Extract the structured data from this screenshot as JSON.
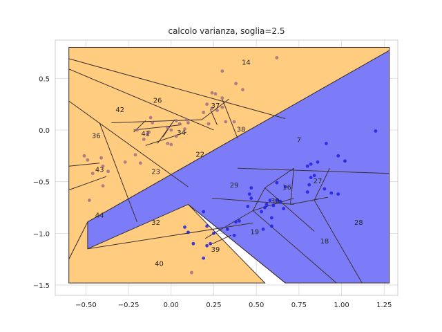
{
  "chart_data": {
    "type": "scatter",
    "title": "calcolo varianza, soglia=2.5",
    "xlabel": "",
    "ylabel": "",
    "xlim": [
      -0.68,
      1.33
    ],
    "ylim": [
      -1.6,
      0.87
    ],
    "x_ticks": [
      -0.5,
      -0.25,
      0.0,
      0.25,
      0.5,
      0.75,
      1.0,
      1.25
    ],
    "x_tick_labels": [
      "−0.50",
      "−0.25",
      "0.00",
      "0.25",
      "0.50",
      "0.75",
      "1.00",
      "1.25"
    ],
    "y_ticks": [
      0.5,
      0.0,
      -0.5,
      -1.0,
      -1.5
    ],
    "y_tick_labels": [
      "0.5",
      "0.0",
      "−0.5",
      "−1.0",
      "−1.5"
    ],
    "grid": true,
    "colors": {
      "orange_region": "#ffcc80",
      "blue_region": "#7c7cf8",
      "orange_point": "#a07080",
      "blue_point": "#2020e0",
      "boundary": "#3a3030",
      "grid": "#d9d9d9"
    },
    "regions": [
      {
        "color": "orange",
        "polygon": [
          [
            -0.6,
            0.8
          ],
          [
            1.28,
            0.8
          ],
          [
            1.28,
            0.77
          ],
          [
            -0.49,
            -0.89
          ],
          [
            -0.6,
            -1.25
          ]
        ]
      },
      {
        "color": "orange",
        "polygon": [
          [
            -0.49,
            -0.89
          ],
          [
            0.1,
            -0.72
          ],
          [
            0.55,
            -1.48
          ],
          [
            -0.6,
            -1.48
          ],
          [
            -0.6,
            -1.25
          ]
        ]
      },
      {
        "color": "blue",
        "polygon": [
          [
            1.28,
            0.77
          ],
          [
            1.28,
            -1.48
          ],
          [
            0.67,
            -1.48
          ],
          [
            0.1,
            -0.72
          ],
          [
            -0.49,
            -1.15
          ],
          [
            -0.49,
            -0.89
          ]
        ]
      }
    ],
    "boundaries": [
      [
        [
          -0.6,
          0.69
        ],
        [
          0.67,
          0.11
        ]
      ],
      [
        [
          -0.6,
          0.59
        ],
        [
          0.25,
          0.0
        ]
      ],
      [
        [
          -0.6,
          0.28
        ],
        [
          0.1,
          -0.55
        ]
      ],
      [
        [
          -0.6,
          -0.35
        ],
        [
          -0.42,
          -0.32
        ]
      ],
      [
        [
          -0.6,
          -0.58
        ],
        [
          -0.38,
          -0.45
        ]
      ],
      [
        [
          -0.42,
          0.07
        ],
        [
          -0.2,
          -0.89
        ]
      ],
      [
        [
          -0.35,
          0.07
        ],
        [
          0.18,
          0.1
        ]
      ],
      [
        [
          -0.22,
          0.0
        ],
        [
          0.06,
          0.05
        ]
      ],
      [
        [
          -0.22,
          -0.02
        ],
        [
          -0.15,
          0.09
        ]
      ],
      [
        [
          0.02,
          0.1
        ],
        [
          -0.08,
          -0.13
        ]
      ],
      [
        [
          -0.15,
          -0.15
        ],
        [
          0.09,
          -0.02
        ]
      ],
      [
        [
          0.0,
          0.05
        ],
        [
          -0.05,
          -0.07
        ]
      ],
      [
        [
          0.18,
          0.1
        ],
        [
          0.34,
          0.3
        ]
      ],
      [
        [
          0.3,
          0.3
        ],
        [
          0.39,
          -0.08
        ]
      ],
      [
        [
          0.23,
          0.2
        ],
        [
          0.27,
          0.05
        ]
      ],
      [
        [
          0.39,
          -0.37
        ],
        [
          1.28,
          -0.42
        ]
      ],
      [
        [
          0.72,
          -0.37
        ],
        [
          0.7,
          -0.72
        ]
      ],
      [
        [
          0.93,
          -0.37
        ],
        [
          0.84,
          -0.68
        ]
      ],
      [
        [
          0.55,
          -0.56
        ],
        [
          0.72,
          -0.37
        ]
      ],
      [
        [
          0.55,
          -0.56
        ],
        [
          0.48,
          -0.78
        ]
      ],
      [
        [
          0.55,
          -0.56
        ],
        [
          0.84,
          -0.98
        ]
      ],
      [
        [
          0.48,
          -0.78
        ],
        [
          0.72,
          -0.66
        ]
      ],
      [
        [
          0.48,
          -0.78
        ],
        [
          0.97,
          -1.48
        ]
      ],
      [
        [
          0.24,
          -0.66
        ],
        [
          0.72,
          -0.72
        ]
      ],
      [
        [
          0.84,
          -0.68
        ],
        [
          1.12,
          -1.48
        ]
      ],
      [
        [
          0.7,
          -0.72
        ],
        [
          0.92,
          -0.65
        ]
      ],
      [
        [
          0.48,
          -0.78
        ],
        [
          0.2,
          -1.05
        ]
      ],
      [
        [
          -0.49,
          -1.15
        ],
        [
          0.48,
          -0.9
        ]
      ],
      [
        [
          0.1,
          -0.72
        ],
        [
          0.67,
          -1.48
        ]
      ],
      [
        [
          0.23,
          -1.11
        ],
        [
          0.35,
          -1.02
        ]
      ]
    ],
    "region_labels": [
      {
        "text": "14",
        "x": 0.44,
        "y": 0.66
      },
      {
        "text": "26",
        "x": -0.08,
        "y": 0.29
      },
      {
        "text": "37",
        "x": 0.26,
        "y": 0.24
      },
      {
        "text": "42",
        "x": -0.3,
        "y": 0.2
      },
      {
        "text": "38",
        "x": 0.41,
        "y": 0.01
      },
      {
        "text": "36",
        "x": -0.44,
        "y": -0.05
      },
      {
        "text": "41",
        "x": -0.15,
        "y": -0.03
      },
      {
        "text": "34",
        "x": 0.06,
        "y": -0.02
      },
      {
        "text": "7",
        "x": 0.75,
        "y": -0.09
      },
      {
        "text": "22",
        "x": 0.17,
        "y": -0.23
      },
      {
        "text": "43",
        "x": -0.42,
        "y": -0.38
      },
      {
        "text": "23",
        "x": -0.09,
        "y": -0.4
      },
      {
        "text": "27",
        "x": 0.86,
        "y": -0.49
      },
      {
        "text": "29",
        "x": 0.37,
        "y": -0.53
      },
      {
        "text": "16",
        "x": 0.68,
        "y": -0.55
      },
      {
        "text": "30",
        "x": 0.61,
        "y": -0.68
      },
      {
        "text": "44",
        "x": -0.42,
        "y": -0.82
      },
      {
        "text": "32",
        "x": -0.09,
        "y": -0.89
      },
      {
        "text": "28",
        "x": 1.1,
        "y": -0.89
      },
      {
        "text": "19",
        "x": 0.49,
        "y": -0.98
      },
      {
        "text": "18",
        "x": 0.9,
        "y": -1.07
      },
      {
        "text": "39",
        "x": 0.26,
        "y": -1.15
      },
      {
        "text": "40",
        "x": -0.07,
        "y": -1.29
      }
    ],
    "series": [
      {
        "color": "orange",
        "points": [
          [
            0.62,
            0.7
          ],
          [
            0.3,
            0.57
          ],
          [
            0.38,
            0.45
          ],
          [
            0.42,
            0.39
          ],
          [
            0.24,
            0.36
          ],
          [
            0.26,
            0.35
          ],
          [
            0.3,
            0.31
          ],
          [
            0.21,
            0.25
          ],
          [
            0.3,
            0.22
          ],
          [
            0.24,
            0.21
          ],
          [
            0.27,
            0.19
          ],
          [
            0.19,
            0.17
          ],
          [
            0.22,
            0.06
          ],
          [
            0.32,
            0.08
          ],
          [
            0.37,
            0.08
          ],
          [
            0.09,
            0.1
          ],
          [
            0.03,
            0.09
          ],
          [
            -0.12,
            0.12
          ],
          [
            -0.11,
            0.07
          ],
          [
            -0.13,
            -0.02
          ],
          [
            -0.14,
            -0.04
          ],
          [
            -0.16,
            -0.09
          ],
          [
            -0.2,
            0.0
          ],
          [
            0.05,
            0.06
          ],
          [
            -0.02,
            0.02
          ],
          [
            0.0,
            0.0
          ],
          [
            0.08,
            0.01
          ],
          [
            0.1,
            0.07
          ],
          [
            0.03,
            -0.06
          ],
          [
            -0.02,
            -0.13
          ],
          [
            0.0,
            -0.14
          ],
          [
            -0.21,
            -0.24
          ],
          [
            -0.18,
            -0.32
          ],
          [
            -0.27,
            -0.31
          ],
          [
            -0.51,
            -0.25
          ],
          [
            -0.49,
            -0.29
          ],
          [
            -0.41,
            -0.27
          ],
          [
            -0.4,
            -0.35
          ],
          [
            -0.37,
            -0.4
          ],
          [
            -0.46,
            -0.42
          ],
          [
            -0.4,
            -0.54
          ],
          [
            -0.48,
            -0.68
          ],
          [
            0.12,
            -1.38
          ]
        ]
      },
      {
        "color": "blue",
        "points": [
          [
            1.2,
            -0.01
          ],
          [
            0.91,
            -0.13
          ],
          [
            0.98,
            -0.25
          ],
          [
            1.02,
            -0.3
          ],
          [
            0.86,
            -0.31
          ],
          [
            0.82,
            -0.33
          ],
          [
            0.8,
            -0.35
          ],
          [
            0.84,
            -0.44
          ],
          [
            0.82,
            -0.46
          ],
          [
            0.81,
            -0.53
          ],
          [
            0.8,
            -0.6
          ],
          [
            0.9,
            -0.57
          ],
          [
            0.94,
            -0.61
          ],
          [
            0.98,
            -0.62
          ],
          [
            0.62,
            -0.51
          ],
          [
            0.67,
            -0.55
          ],
          [
            0.47,
            -0.56
          ],
          [
            0.46,
            -0.62
          ],
          [
            0.47,
            -0.66
          ],
          [
            0.45,
            -0.74
          ],
          [
            0.58,
            -0.68
          ],
          [
            0.56,
            -0.72
          ],
          [
            0.6,
            -0.73
          ],
          [
            0.62,
            -0.68
          ],
          [
            0.64,
            -0.69
          ],
          [
            0.66,
            -0.76
          ],
          [
            0.55,
            -0.75
          ],
          [
            0.53,
            -0.79
          ],
          [
            0.4,
            -0.88
          ],
          [
            0.38,
            -0.89
          ],
          [
            0.33,
            -0.96
          ],
          [
            0.37,
            -1.02
          ],
          [
            0.59,
            -0.93
          ],
          [
            0.54,
            -0.96
          ],
          [
            0.59,
            -0.85
          ],
          [
            0.19,
            -0.79
          ],
          [
            0.21,
            -0.93
          ],
          [
            0.08,
            -0.94
          ],
          [
            0.1,
            -0.99
          ],
          [
            0.25,
            -1.0
          ],
          [
            0.23,
            -1.1
          ],
          [
            0.21,
            -1.12
          ],
          [
            0.13,
            -1.1
          ],
          [
            0.19,
            -1.24
          ]
        ]
      }
    ]
  }
}
